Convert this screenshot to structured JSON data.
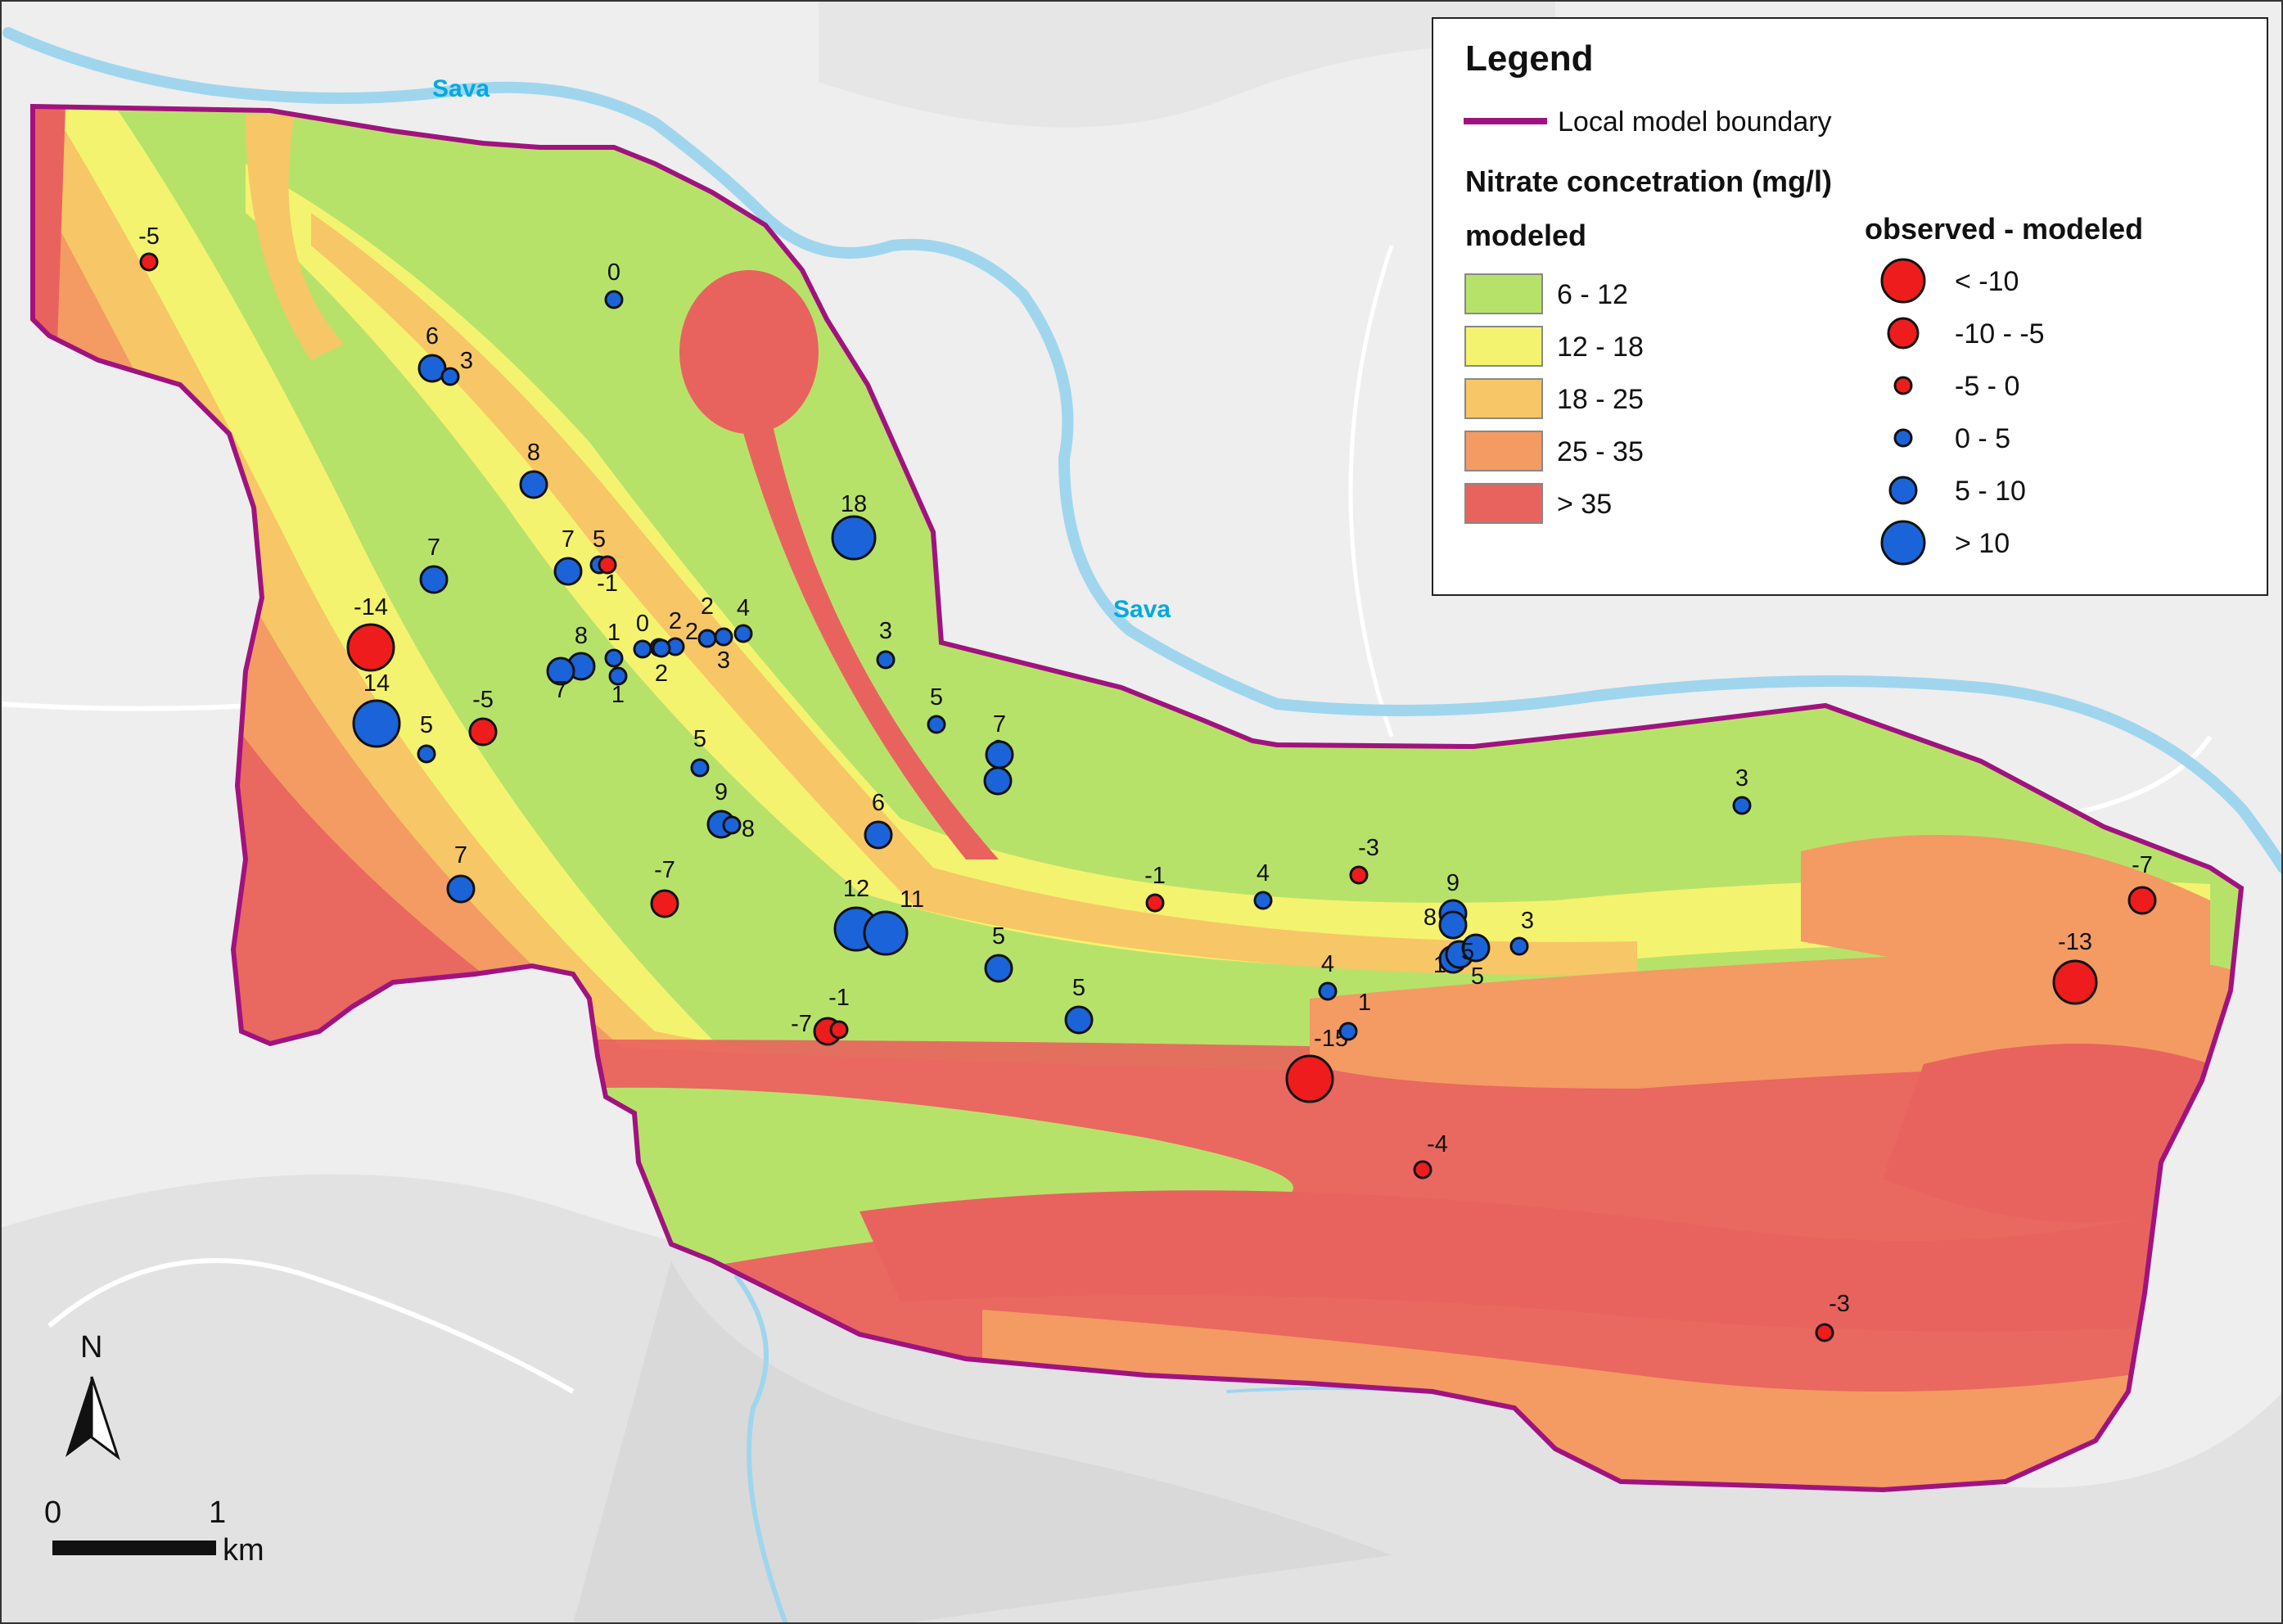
{
  "rivers": [
    "Sava",
    "Sava"
  ],
  "legend": {
    "title": "Legend",
    "boundary_label": "Local model boundary",
    "subtitle": "Nitrate concetration (mg/l)",
    "modeled_header": "modeled",
    "observed_header": "observed - modeled",
    "modeled_classes": [
      {
        "label": "6 - 12",
        "color": "#b7e26a"
      },
      {
        "label": "12 - 18",
        "color": "#f4f36f"
      },
      {
        "label": "18 - 25",
        "color": "#f7c666"
      },
      {
        "label": "25 - 35",
        "color": "#f49a63"
      },
      {
        "label": "> 35",
        "color": "#e8635e"
      }
    ],
    "observed_classes": [
      {
        "label": "< -10",
        "color": "#ee1c1c"
      },
      {
        "label": "-10 - -5",
        "color": "#ee1c1c"
      },
      {
        "label": "-5 - 0",
        "color": "#ee1c1c"
      },
      {
        "label": "0 - 5",
        "color": "#1b63d8"
      },
      {
        "label": "5 - 10",
        "color": "#1b63d8"
      },
      {
        "label": "> 10",
        "color": "#1b63d8"
      }
    ]
  },
  "scale_bar": {
    "start_label": "0",
    "end_label": "1",
    "unit": "km"
  },
  "north_arrow": {
    "label": "N"
  },
  "observation_labels": [
    "-5",
    "0",
    "6",
    "3",
    "8",
    "18",
    "7",
    "5",
    "-1",
    "7",
    "-14",
    "0",
    "2",
    "2",
    "4",
    "2",
    "8",
    "1",
    "2",
    "3",
    "3",
    "7",
    "1",
    "14",
    "5",
    "-5",
    "5",
    "7",
    "6",
    "5",
    "9",
    "8",
    "6",
    "7",
    "12",
    "11",
    "5",
    "5",
    "-7",
    "-1",
    "-7",
    "-1",
    "-15",
    "4",
    "-3",
    "9",
    "8",
    "3",
    "1",
    "5",
    "3",
    "4",
    "1",
    "-4",
    "5",
    "-7",
    "-13",
    "-3"
  ],
  "colors": {
    "boundary": "#a0137f",
    "river": "#9fd6ee",
    "basemap": "#eeeeee",
    "observed_negative": "#ee1c1c",
    "observed_positive": "#1b63d8"
  }
}
